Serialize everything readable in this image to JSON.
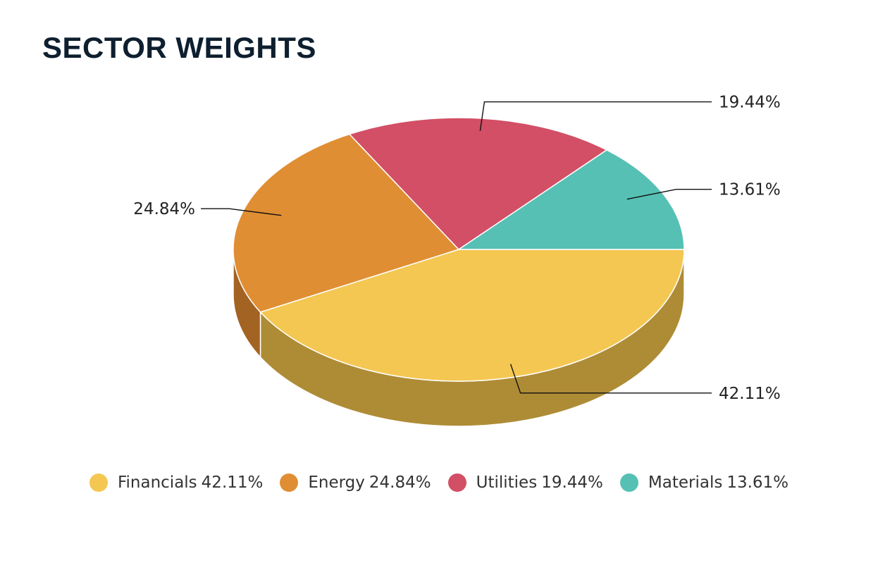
{
  "chart_data": {
    "type": "pie",
    "title": "SECTOR WEIGHTS",
    "three_d": true,
    "slices": [
      {
        "name": "Financials",
        "value": 42.11,
        "label": "42.11%",
        "color": "#f4c752",
        "side_color": "#ae8c36"
      },
      {
        "name": "Energy",
        "value": 24.84,
        "label": "24.84%",
        "color": "#e08e33",
        "side_color": "#a36322"
      },
      {
        "name": "Utilities",
        "value": 19.44,
        "label": "19.44%",
        "color": "#d24f66",
        "side_color": "#9a3a4b"
      },
      {
        "name": "Materials",
        "value": 13.61,
        "label": "13.61%",
        "color": "#57c0b4",
        "side_color": "#3f8c83"
      }
    ],
    "legend": {
      "placement": "bottom",
      "items": [
        {
          "name": "Financials",
          "value": "42.11%",
          "color": "#f4c752"
        },
        {
          "name": "Energy",
          "value": "24.84%",
          "color": "#e08e33"
        },
        {
          "name": "Utilities",
          "value": "19.44%",
          "color": "#d24f66"
        },
        {
          "name": "Materials",
          "value": "13.61%",
          "color": "#57c0b4"
        }
      ]
    }
  }
}
